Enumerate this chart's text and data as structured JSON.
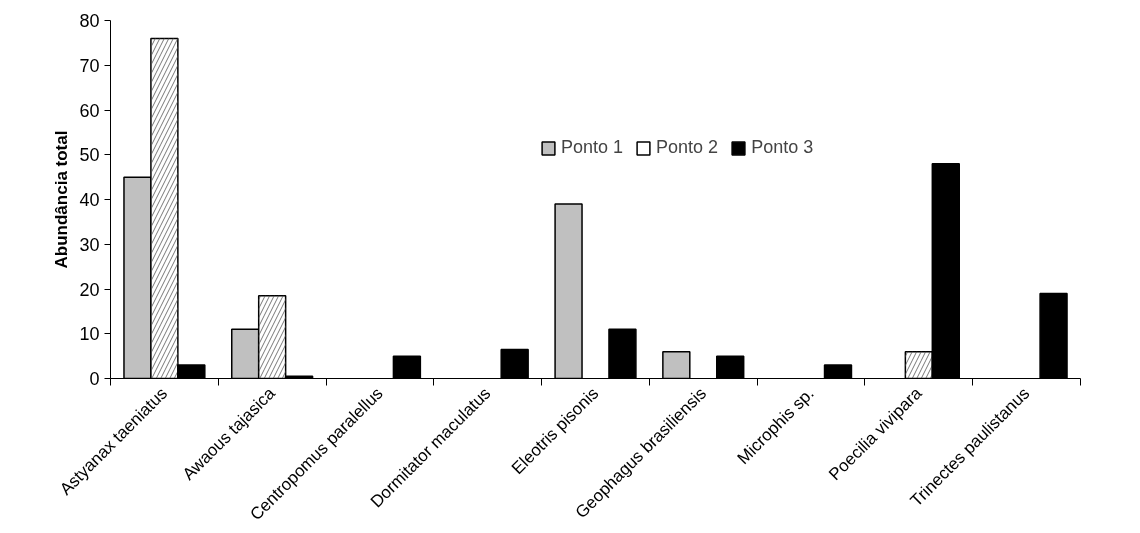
{
  "chart_data": {
    "type": "bar",
    "ylabel": "Abundância total",
    "categories": [
      "Astyanax taeniatus",
      "Awaous tajasica",
      "Centropomus paralellus",
      "Dormitator maculatus",
      "Eleotris pisonis",
      "Geophagus brasiliensis",
      "Microphis sp.",
      "Poecilia vivipara",
      "Trinectes paulistanus"
    ],
    "series": [
      {
        "name": "Ponto 1",
        "color": "#c0c0c0",
        "values": [
          45,
          11,
          0,
          0,
          39,
          6,
          0,
          0,
          0
        ]
      },
      {
        "name": "Ponto 2",
        "color": "#ffffff",
        "values": [
          76,
          18.5,
          0,
          0,
          0,
          0,
          0,
          6,
          0
        ]
      },
      {
        "name": "Ponto 3",
        "color": "#000000",
        "values": [
          3,
          0.5,
          5,
          6.5,
          11,
          5,
          3,
          48,
          19
        ]
      }
    ],
    "ylim": [
      0,
      80
    ],
    "yticks": [
      0,
      10,
      20,
      30,
      40,
      50,
      60,
      70,
      80
    ],
    "grid": false,
    "legend": "top"
  }
}
